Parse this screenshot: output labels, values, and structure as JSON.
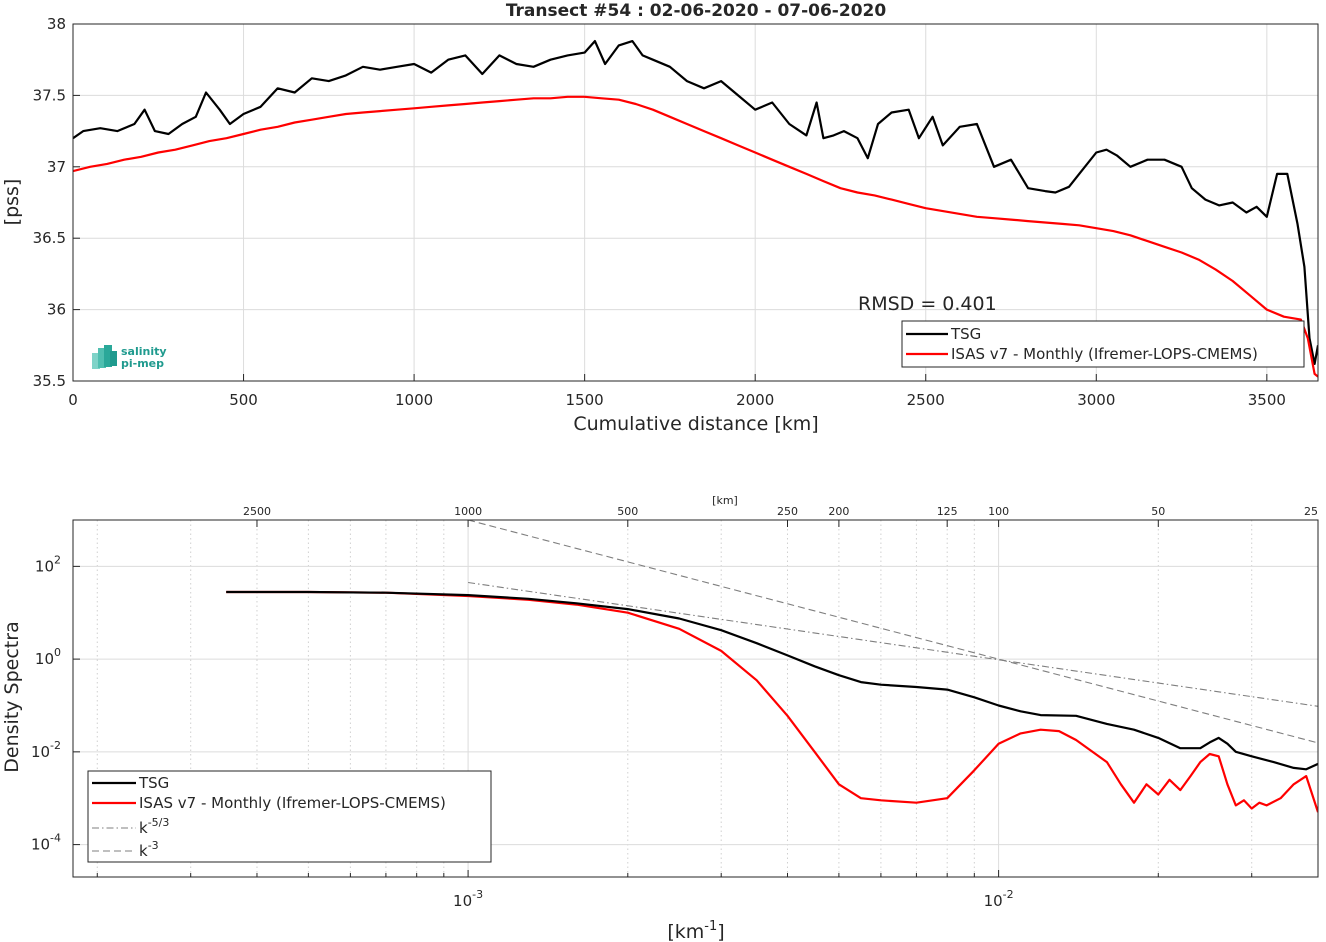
{
  "chart_data": [
    {
      "type": "line",
      "title": "Transect #54 : 02-06-2020 - 07-06-2020",
      "xlabel": "Cumulative distance [km]",
      "ylabel": "[pss]",
      "xlim": [
        0,
        3650
      ],
      "ylim": [
        35.5,
        38
      ],
      "xticks": [
        "0",
        "500",
        "1000",
        "1500",
        "2000",
        "2500",
        "3000",
        "3500"
      ],
      "yticks": [
        "35.5",
        "36",
        "36.5",
        "37",
        "37.5",
        "38"
      ],
      "grid": true,
      "legend_position": "bottom-right",
      "annotation": "RMSD = 0.401",
      "series": [
        {
          "name": "TSG",
          "color": "#000000",
          "x": [
            0,
            30,
            80,
            130,
            180,
            210,
            240,
            280,
            320,
            360,
            390,
            430,
            460,
            500,
            550,
            600,
            650,
            700,
            750,
            800,
            850,
            900,
            950,
            1000,
            1050,
            1100,
            1150,
            1200,
            1250,
            1300,
            1350,
            1400,
            1450,
            1500,
            1530,
            1560,
            1600,
            1640,
            1670,
            1700,
            1750,
            1800,
            1850,
            1900,
            1950,
            2000,
            2050,
            2100,
            2150,
            2180,
            2200,
            2230,
            2260,
            2300,
            2330,
            2360,
            2400,
            2450,
            2480,
            2520,
            2550,
            2600,
            2650,
            2700,
            2750,
            2800,
            2850,
            2880,
            2920,
            2950,
            3000,
            3030,
            3060,
            3100,
            3150,
            3200,
            3250,
            3280,
            3320,
            3360,
            3400,
            3440,
            3470,
            3500,
            3530,
            3560,
            3590,
            3610,
            3625,
            3640,
            3650
          ],
          "y": [
            37.2,
            37.25,
            37.27,
            37.25,
            37.3,
            37.4,
            37.25,
            37.23,
            37.3,
            37.35,
            37.52,
            37.4,
            37.3,
            37.37,
            37.42,
            37.55,
            37.52,
            37.62,
            37.6,
            37.64,
            37.7,
            37.68,
            37.7,
            37.72,
            37.66,
            37.75,
            37.78,
            37.65,
            37.78,
            37.72,
            37.7,
            37.75,
            37.78,
            37.8,
            37.88,
            37.72,
            37.85,
            37.88,
            37.78,
            37.75,
            37.7,
            37.6,
            37.55,
            37.6,
            37.5,
            37.4,
            37.45,
            37.3,
            37.22,
            37.45,
            37.2,
            37.22,
            37.25,
            37.2,
            37.06,
            37.3,
            37.38,
            37.4,
            37.2,
            37.35,
            37.15,
            37.28,
            37.3,
            37.0,
            37.05,
            36.85,
            36.83,
            36.82,
            36.86,
            36.95,
            37.1,
            37.12,
            37.08,
            37.0,
            37.05,
            37.05,
            37.0,
            36.85,
            36.77,
            36.73,
            36.75,
            36.68,
            36.72,
            36.65,
            36.95,
            36.95,
            36.6,
            36.3,
            35.8,
            35.62,
            35.75
          ]
        },
        {
          "name": "ISAS v7 - Monthly (Ifremer-LOPS-CMEMS)",
          "color": "#ff0000",
          "x": [
            0,
            50,
            100,
            150,
            200,
            250,
            300,
            350,
            400,
            450,
            500,
            550,
            600,
            650,
            700,
            750,
            800,
            850,
            900,
            950,
            1000,
            1050,
            1100,
            1150,
            1200,
            1250,
            1300,
            1350,
            1400,
            1450,
            1500,
            1550,
            1600,
            1650,
            1700,
            1750,
            1800,
            1850,
            1900,
            1950,
            2000,
            2050,
            2100,
            2150,
            2200,
            2250,
            2300,
            2350,
            2400,
            2450,
            2500,
            2550,
            2600,
            2650,
            2700,
            2750,
            2800,
            2850,
            2900,
            2950,
            3000,
            3050,
            3100,
            3150,
            3200,
            3250,
            3300,
            3350,
            3400,
            3450,
            3500,
            3550,
            3600,
            3620,
            3640,
            3650
          ],
          "y": [
            36.97,
            37.0,
            37.02,
            37.05,
            37.07,
            37.1,
            37.12,
            37.15,
            37.18,
            37.2,
            37.23,
            37.26,
            37.28,
            37.31,
            37.33,
            37.35,
            37.37,
            37.38,
            37.39,
            37.4,
            37.41,
            37.42,
            37.43,
            37.44,
            37.45,
            37.46,
            37.47,
            37.48,
            37.48,
            37.49,
            37.49,
            37.48,
            37.47,
            37.44,
            37.4,
            37.35,
            37.3,
            37.25,
            37.2,
            37.15,
            37.1,
            37.05,
            37.0,
            36.95,
            36.9,
            36.85,
            36.82,
            36.8,
            36.77,
            36.74,
            36.71,
            36.69,
            36.67,
            36.65,
            36.64,
            36.63,
            36.62,
            36.61,
            36.6,
            36.59,
            36.57,
            36.55,
            36.52,
            36.48,
            36.44,
            36.4,
            36.35,
            36.28,
            36.2,
            36.1,
            36.0,
            35.95,
            35.93,
            35.8,
            35.55,
            35.53
          ]
        }
      ]
    },
    {
      "type": "line",
      "xlabel": "[km",
      "xlabel_superscript": "-1",
      "xlabel_close": "]",
      "ylabel": "Density Spectra",
      "top_axis_label": "[km]",
      "xscale": "log",
      "yscale": "log",
      "xlim": [
        0.00018,
        0.04
      ],
      "ylim": [
        2e-05,
        1000
      ],
      "xticks": [
        {
          "base": "10",
          "exp": "-3"
        },
        {
          "base": "10",
          "exp": "-2"
        }
      ],
      "yticks": [
        {
          "base": "10",
          "exp": "-4"
        },
        {
          "base": "10",
          "exp": "-2"
        },
        {
          "base": "10",
          "exp": "0"
        },
        {
          "base": "10",
          "exp": "2"
        }
      ],
      "top_ticks": [
        "2500",
        "1000",
        "500",
        "250",
        "200",
        "125",
        "100",
        "50",
        "25"
      ],
      "grid": true,
      "legend_position": "bottom-left",
      "series": [
        {
          "name": "TSG",
          "color": "#000000",
          "dash": "solid",
          "x": [
            0.00035,
            0.0005,
            0.0007,
            0.001,
            0.0013,
            0.0016,
            0.002,
            0.0025,
            0.003,
            0.0035,
            0.004,
            0.0045,
            0.005,
            0.0055,
            0.006,
            0.007,
            0.008,
            0.009,
            0.01,
            0.011,
            0.012,
            0.014,
            0.016,
            0.018,
            0.02,
            0.022,
            0.024,
            0.025,
            0.026,
            0.027,
            0.028,
            0.03,
            0.033,
            0.036,
            0.038,
            0.04
          ],
          "y": [
            28,
            28,
            27,
            24,
            20,
            16,
            12,
            7.5,
            4.2,
            2.2,
            1.2,
            0.7,
            0.45,
            0.32,
            0.28,
            0.25,
            0.22,
            0.15,
            0.1,
            0.075,
            0.062,
            0.06,
            0.04,
            0.03,
            0.02,
            0.012,
            0.012,
            0.016,
            0.02,
            0.015,
            0.01,
            0.008,
            0.006,
            0.0045,
            0.0042,
            0.0055
          ]
        },
        {
          "name": "ISAS v7 - Monthly (Ifremer-LOPS-CMEMS)",
          "color": "#ff0000",
          "dash": "solid",
          "x": [
            0.00035,
            0.0005,
            0.0007,
            0.001,
            0.0013,
            0.0016,
            0.002,
            0.0025,
            0.003,
            0.0035,
            0.004,
            0.0045,
            0.005,
            0.0055,
            0.006,
            0.007,
            0.008,
            0.009,
            0.01,
            0.011,
            0.012,
            0.013,
            0.014,
            0.016,
            0.017,
            0.018,
            0.019,
            0.02,
            0.021,
            0.022,
            0.023,
            0.024,
            0.025,
            0.026,
            0.027,
            0.028,
            0.029,
            0.03,
            0.031,
            0.032,
            0.034,
            0.036,
            0.038,
            0.04
          ],
          "y": [
            28,
            28,
            27,
            23,
            19,
            15,
            10,
            4.5,
            1.5,
            0.35,
            0.06,
            0.01,
            0.002,
            0.001,
            0.0009,
            0.0008,
            0.001,
            0.004,
            0.015,
            0.025,
            0.03,
            0.028,
            0.018,
            0.006,
            0.002,
            0.0008,
            0.002,
            0.0012,
            0.0025,
            0.0015,
            0.003,
            0.006,
            0.009,
            0.008,
            0.002,
            0.0007,
            0.0009,
            0.0006,
            0.0008,
            0.0007,
            0.001,
            0.002,
            0.003,
            0.0005
          ]
        },
        {
          "name": "k",
          "name_superscript": "-5/3",
          "color": "#7f7f7f",
          "dash": "dashdot",
          "x": [
            0.001,
            0.04
          ],
          "y": [
            45,
            0.096
          ]
        },
        {
          "name": "k",
          "name_superscript": "-3",
          "color": "#7f7f7f",
          "dash": "dashed",
          "x": [
            0.001,
            0.04
          ],
          "y": [
            1000,
            0.0156
          ]
        }
      ]
    }
  ],
  "logo": {
    "line1": "salinity",
    "line2": "pi-mep",
    "color": "#1f9a8e"
  }
}
